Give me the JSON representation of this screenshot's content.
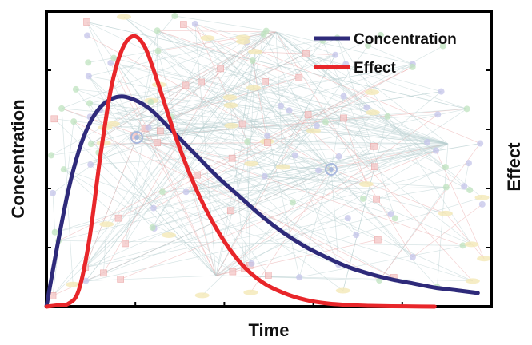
{
  "chart_data": {
    "type": "line",
    "title": "",
    "xlabel": "Time",
    "ylabel": "Concentration",
    "y2label": "Effect",
    "xlim": [
      0,
      10
    ],
    "ylim": [
      0,
      1
    ],
    "y2lim": [
      0,
      1
    ],
    "grid": false,
    "legend_position": "top-right",
    "x_tick_count": 5,
    "y_tick_count": 4,
    "series": [
      {
        "name": "Concentration",
        "color": "#2e2a7a",
        "axis": "left",
        "x": [
          0,
          0.25,
          0.5,
          0.75,
          1.0,
          1.25,
          1.5,
          1.75,
          2.0,
          2.25,
          2.5,
          3.0,
          3.5,
          4.0,
          4.5,
          5.0,
          5.5,
          6.0,
          6.5,
          7.0,
          7.5,
          8.0,
          8.5,
          9.0,
          9.5,
          10.0
        ],
        "y": [
          0.0,
          0.22,
          0.42,
          0.57,
          0.67,
          0.73,
          0.76,
          0.77,
          0.76,
          0.74,
          0.71,
          0.63,
          0.55,
          0.47,
          0.4,
          0.33,
          0.27,
          0.22,
          0.18,
          0.145,
          0.12,
          0.1,
          0.085,
          0.07,
          0.06,
          0.05
        ]
      },
      {
        "name": "Effect",
        "color": "#e8262a",
        "axis": "right",
        "x": [
          0,
          0.25,
          0.5,
          0.75,
          1.0,
          1.25,
          1.5,
          1.75,
          2.0,
          2.25,
          2.5,
          3.0,
          3.5,
          4.0,
          4.5,
          5.0,
          5.5,
          6.0,
          6.5,
          7.0,
          7.5,
          8.0,
          8.5,
          9.0
        ],
        "y": [
          0.0,
          0.005,
          0.01,
          0.06,
          0.25,
          0.55,
          0.8,
          0.94,
          0.99,
          0.96,
          0.86,
          0.62,
          0.42,
          0.27,
          0.16,
          0.09,
          0.05,
          0.025,
          0.012,
          0.006,
          0.003,
          0.0015,
          0.0008,
          0.0
        ]
      }
    ]
  }
}
